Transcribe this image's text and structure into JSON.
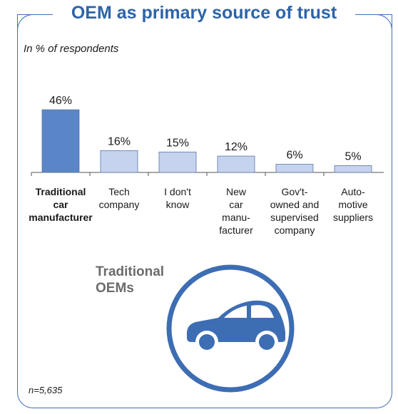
{
  "title": "OEM as primary source of trust",
  "subtitle": "In % of respondents",
  "note": "n=5,635",
  "badge": {
    "label_lines": [
      "Traditional",
      "OEMs"
    ],
    "icon": "car-icon"
  },
  "colors": {
    "accent": "#2d64a7",
    "highlight_bar": "#5a86c8",
    "bar": "#c5d3ee",
    "bar_stroke": "#5a76a8",
    "badge": "#3d6db3"
  },
  "chart_data": {
    "type": "bar",
    "categories": [
      [
        "Traditional",
        "car",
        "manufacturer"
      ],
      [
        "Tech",
        "company"
      ],
      [
        "I don't",
        "know"
      ],
      [
        "New",
        "car",
        "manu-",
        "facturer"
      ],
      [
        "Gov't-",
        "owned and",
        "supervised",
        "company"
      ],
      [
        "Auto-",
        "motive",
        "suppliers"
      ]
    ],
    "values": [
      46,
      16,
      15,
      12,
      6,
      5
    ],
    "value_labels": [
      "46%",
      "16%",
      "15%",
      "12%",
      "6%",
      "5%"
    ],
    "highlight_index": 0,
    "ylim": [
      0,
      46
    ],
    "xlabel": "",
    "ylabel": ""
  }
}
